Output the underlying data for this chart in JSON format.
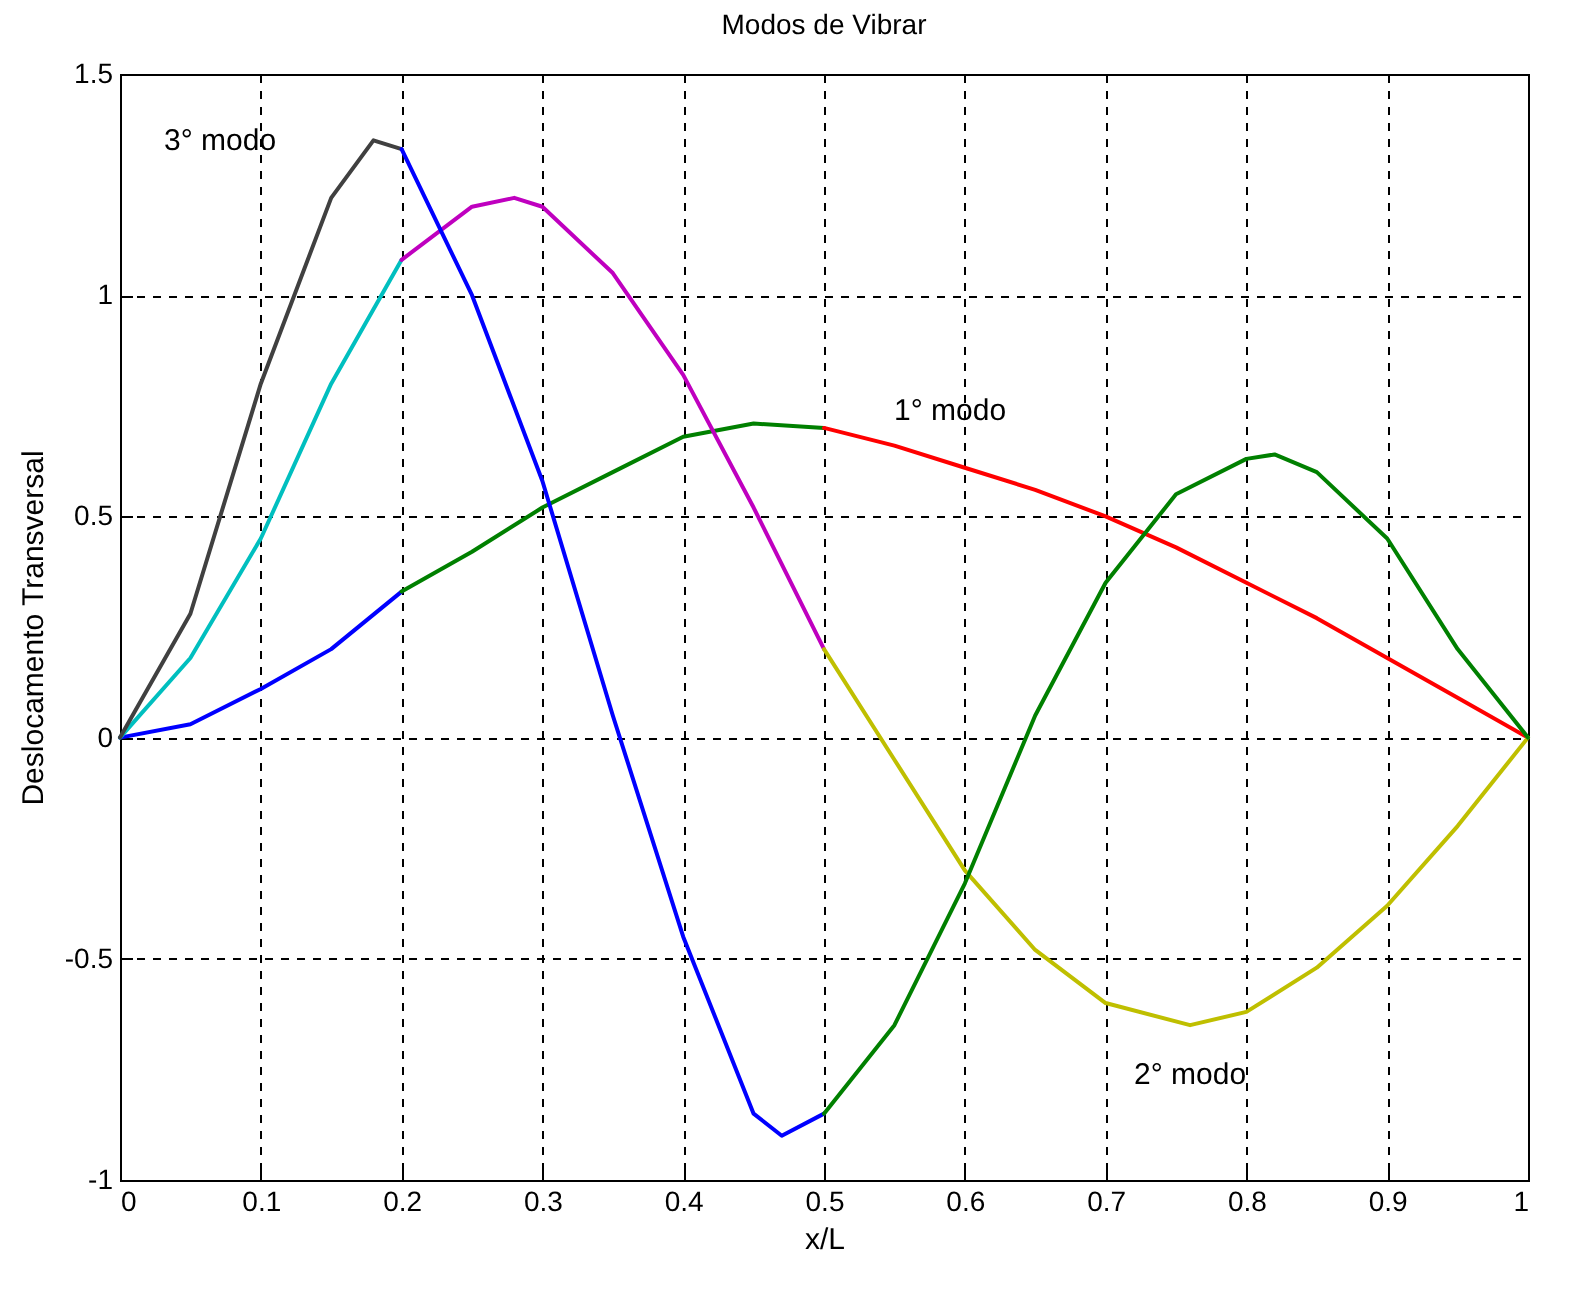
{
  "chart_data": {
    "type": "line",
    "title": "Modos de Vibrar",
    "xlabel": "x/L",
    "ylabel": "Deslocamento Transversal",
    "xlim": [
      0,
      1
    ],
    "ylim": [
      -1,
      1.5
    ],
    "xticks": [
      0,
      0.1,
      0.2,
      0.3,
      0.4,
      0.5,
      0.6,
      0.7,
      0.8,
      0.9,
      1
    ],
    "yticks": [
      -1,
      -0.5,
      0,
      0.5,
      1,
      1.5
    ],
    "grid": true,
    "series": [
      {
        "color": "#0000ff",
        "x": [
          0,
          0.05,
          0.1,
          0.15,
          0.2
        ],
        "values": [
          0,
          0.03,
          0.11,
          0.2,
          0.33
        ]
      },
      {
        "color": "#008000",
        "x": [
          0.2,
          0.25,
          0.3,
          0.35,
          0.4,
          0.45,
          0.5
        ],
        "values": [
          0.33,
          0.42,
          0.52,
          0.6,
          0.68,
          0.71,
          0.7
        ]
      },
      {
        "color": "#ff0000",
        "x": [
          0.5,
          0.55,
          0.6,
          0.65,
          0.7,
          0.75,
          0.8,
          0.85,
          0.9,
          0.95,
          1
        ],
        "values": [
          0.7,
          0.66,
          0.61,
          0.56,
          0.5,
          0.43,
          0.35,
          0.27,
          0.18,
          0.09,
          0
        ]
      },
      {
        "color": "#00bfbf",
        "x": [
          0,
          0.05,
          0.1,
          0.15,
          0.2
        ],
        "values": [
          0,
          0.18,
          0.45,
          0.8,
          1.08
        ]
      },
      {
        "color": "#bf00bf",
        "x": [
          0.2,
          0.25,
          0.28,
          0.3,
          0.35,
          0.4,
          0.45,
          0.5
        ],
        "values": [
          1.08,
          1.2,
          1.22,
          1.2,
          1.05,
          0.82,
          0.52,
          0.2
        ]
      },
      {
        "color": "#bfbf00",
        "x": [
          0.5,
          0.55,
          0.6,
          0.65,
          0.7,
          0.76,
          0.8,
          0.85,
          0.9,
          0.95,
          1
        ],
        "values": [
          0.2,
          -0.05,
          -0.3,
          -0.48,
          -0.6,
          -0.65,
          -0.62,
          -0.52,
          -0.38,
          -0.2,
          0
        ]
      },
      {
        "color": "#404040",
        "x": [
          0,
          0.05,
          0.1,
          0.15,
          0.18,
          0.2
        ],
        "values": [
          0,
          0.28,
          0.8,
          1.22,
          1.35,
          1.33
        ]
      },
      {
        "color": "#0000ff",
        "x": [
          0.2,
          0.25,
          0.3,
          0.35,
          0.4,
          0.45,
          0.47,
          0.5
        ],
        "values": [
          1.33,
          1.0,
          0.58,
          0.05,
          -0.45,
          -0.85,
          -0.9,
          -0.85
        ]
      },
      {
        "color": "#008000",
        "x": [
          0.5,
          0.55,
          0.6,
          0.65,
          0.7,
          0.75,
          0.8,
          0.82,
          0.85,
          0.9,
          0.95,
          1
        ],
        "values": [
          -0.85,
          -0.65,
          -0.33,
          0.05,
          0.35,
          0.55,
          0.63,
          0.64,
          0.6,
          0.45,
          0.2,
          0
        ]
      }
    ],
    "annotations": [
      "1° modo",
      "2° modo",
      "3° modo"
    ]
  }
}
